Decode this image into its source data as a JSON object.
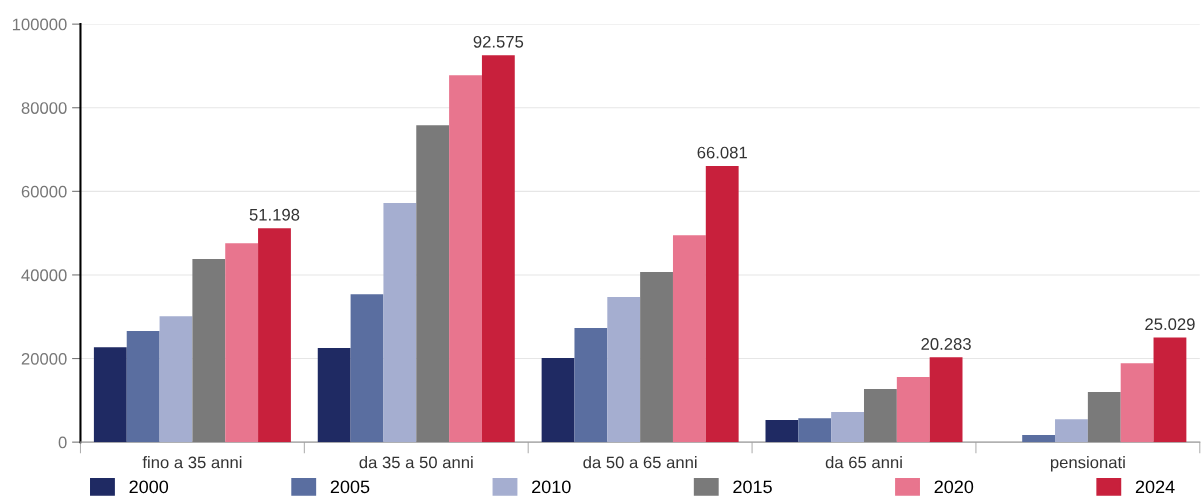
{
  "chart_data": {
    "type": "bar",
    "categories": [
      "fino a 35 anni",
      "da 35 a 50 anni",
      "da 50 a 65 anni",
      "da 65 anni",
      "pensionati"
    ],
    "series": [
      {
        "name": "2000",
        "color": "#1f2a63",
        "values": [
          22700,
          22500,
          20100,
          5300,
          null
        ]
      },
      {
        "name": "2005",
        "color": "#5a6ea0",
        "values": [
          26600,
          35400,
          27300,
          5700,
          1700
        ]
      },
      {
        "name": "2010",
        "color": "#a5aed0",
        "values": [
          30100,
          57200,
          34700,
          7200,
          5500
        ]
      },
      {
        "name": "2015",
        "color": "#7a7a7a",
        "values": [
          43800,
          75800,
          40700,
          12700,
          12000
        ]
      },
      {
        "name": "2020",
        "color": "#e8758e",
        "values": [
          47600,
          87800,
          49500,
          15600,
          18900
        ]
      },
      {
        "name": "2024",
        "color": "#c8203c",
        "values": [
          51198,
          92575,
          66081,
          20283,
          25029
        ],
        "value_labels": [
          "51.198",
          "92.575",
          "66.081",
          "20.283",
          "25.029"
        ]
      }
    ],
    "ylim": [
      0,
      100000
    ],
    "yticks": [
      0,
      20000,
      40000,
      60000,
      80000,
      100000
    ],
    "grid": "y",
    "legend": "bottom"
  }
}
